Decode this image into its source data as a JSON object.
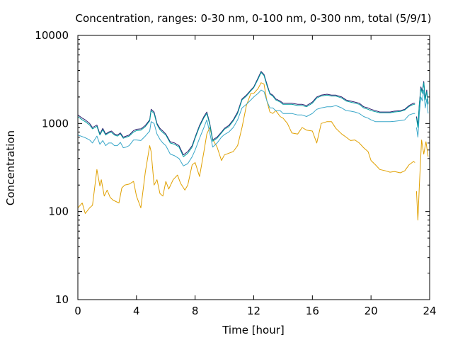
{
  "chart_data": {
    "type": "line",
    "title": "Concentration, ranges: 0-30 nm, 0-100 nm, 0-300 nm, total (5/9/1)",
    "xlabel": "Time [hour]",
    "ylabel": "Concentration",
    "xlim": [
      0,
      24
    ],
    "ylim": [
      10,
      10000
    ],
    "yscale": "log",
    "grid": false,
    "legend": "none",
    "xticks": [
      {
        "value": 0,
        "label": "0"
      },
      {
        "value": 4,
        "label": "4"
      },
      {
        "value": 8,
        "label": "8"
      },
      {
        "value": 12,
        "label": "12"
      },
      {
        "value": 16,
        "label": "16"
      },
      {
        "value": 20,
        "label": "20"
      },
      {
        "value": 24,
        "label": "24"
      }
    ],
    "yticks": [
      {
        "value": 10,
        "label": "10"
      },
      {
        "value": 100,
        "label": "100"
      },
      {
        "value": 1000,
        "label": "1000"
      },
      {
        "value": 10000,
        "label": "10000"
      }
    ],
    "series": [
      {
        "color": "#e0a000",
        "segments": [
          {
            "x": [
              0,
              0.3,
              0.5,
              0.8,
              1.0,
              1.3,
              1.5,
              1.6,
              1.8,
              2.0,
              2.2,
              2.4,
              2.6,
              2.8,
              3.0,
              3.2,
              3.5,
              3.8,
              4.0,
              4.3,
              4.6,
              4.9,
              5.0,
              5.2,
              5.4,
              5.6,
              5.8,
              6.0,
              6.2,
              6.5,
              6.8,
              7.0,
              7.3,
              7.5,
              7.8,
              8.0,
              8.3,
              8.6,
              8.8,
              9.0,
              9.2,
              9.5,
              9.8,
              10.0,
              10.3,
              10.6,
              10.9,
              11.2,
              11.5,
              11.8,
              12.0,
              12.3,
              12.5,
              12.7,
              12.9,
              13.1,
              13.3,
              13.5,
              13.8,
              14.0,
              14.3,
              14.6,
              15.0,
              15.3,
              15.6,
              16.0,
              16.3,
              16.6,
              17.0,
              17.3,
              17.6,
              18.0,
              18.3,
              18.6,
              18.9,
              19.2,
              19.5,
              19.8,
              20.0,
              20.3,
              20.6,
              21.0,
              21.3,
              21.6,
              22.0,
              22.3,
              22.6,
              22.9,
              23.0
            ],
            "y": [
              110,
              125,
              95,
              110,
              118,
              300,
              195,
              230,
              150,
              175,
              145,
              135,
              130,
              125,
              185,
              200,
              205,
              220,
              150,
              110,
              280,
              560,
              480,
              200,
              230,
              160,
              150,
              220,
              180,
              230,
              260,
              210,
              175,
              200,
              340,
              360,
              250,
              480,
              760,
              900,
              660,
              540,
              380,
              440,
              460,
              480,
              560,
              900,
              1600,
              2200,
              2200,
              2500,
              2900,
              2800,
              1800,
              1350,
              1300,
              1400,
              1200,
              1150,
              1000,
              780,
              760,
              900,
              840,
              820,
              600,
              1000,
              1050,
              1050,
              880,
              760,
              700,
              640,
              650,
              600,
              530,
              480,
              380,
              340,
              300,
              290,
              280,
              285,
              275,
              290,
              340,
              370,
              360
            ]
          },
          {
            "x": [
              23.1,
              23.2,
              23.3,
              23.45,
              23.6,
              23.75,
              23.9
            ],
            "y": [
              170,
              80,
              200,
              650,
              450,
              620,
              420
            ]
          }
        ]
      },
      {
        "color": "#3aa7c9",
        "segments": [
          {
            "x": [
              0,
              0.3,
              0.5,
              0.8,
              1.0,
              1.3,
              1.5,
              1.7,
              1.9,
              2.1,
              2.3,
              2.5,
              2.7,
              2.9,
              3.1,
              3.3,
              3.5,
              3.8,
              4.0,
              4.3,
              4.6,
              4.9,
              5.0,
              5.2,
              5.4,
              5.6,
              5.8,
              6.0,
              6.3,
              6.6,
              6.9,
              7.2,
              7.5,
              7.8,
              8.0,
              8.3,
              8.6,
              8.8,
              9.0,
              9.2,
              9.5,
              9.8,
              10.0,
              10.3,
              10.6,
              10.9,
              11.2,
              11.5,
              11.8,
              12.0,
              12.3,
              12.5,
              12.7,
              12.9,
              13.1,
              13.3,
              13.5,
              13.8,
              14.0,
              14.3,
              14.6,
              15.0,
              15.3,
              15.6,
              16.0,
              16.3,
              16.6,
              17.0,
              17.3,
              17.6,
              18.0,
              18.3,
              18.6,
              18.9,
              19.2,
              19.5,
              19.8,
              20.0,
              20.3,
              20.6,
              21.0,
              21.3,
              21.6,
              22.0,
              22.3,
              22.6,
              22.9,
              23.0
            ],
            "y": [
              740,
              710,
              690,
              650,
              600,
              720,
              580,
              640,
              560,
              600,
              600,
              560,
              560,
              610,
              530,
              540,
              560,
              650,
              650,
              640,
              720,
              820,
              1050,
              1000,
              760,
              660,
              600,
              560,
              450,
              430,
              400,
              330,
              350,
              420,
              500,
              680,
              900,
              1100,
              780,
              540,
              600,
              700,
              750,
              800,
              900,
              1100,
              1500,
              1650,
              1850,
              2000,
              2200,
              2400,
              2300,
              1800,
              1500,
              1500,
              1400,
              1400,
              1300,
              1300,
              1300,
              1250,
              1250,
              1200,
              1300,
              1450,
              1500,
              1550,
              1550,
              1600,
              1500,
              1400,
              1380,
              1350,
              1300,
              1200,
              1150,
              1100,
              1050,
              1050,
              1050,
              1050,
              1060,
              1080,
              1100,
              1250,
              1300,
              1300
            ]
          },
          {
            "x": [
              23.1,
              23.2,
              23.3,
              23.4,
              23.5,
              23.6,
              23.7,
              23.8,
              23.9
            ],
            "y": [
              900,
              700,
              1300,
              2000,
              1800,
              2400,
              1500,
              1900,
              1300
            ]
          }
        ]
      },
      {
        "color": "#2e1e6e",
        "segments": [
          {
            "x": [
              0,
              0.3,
              0.5,
              0.8,
              1.0,
              1.3,
              1.5,
              1.7,
              1.9,
              2.1,
              2.3,
              2.5,
              2.7,
              2.9,
              3.1,
              3.3,
              3.5,
              3.8,
              4.0,
              4.3,
              4.6,
              4.9,
              5.0,
              5.2,
              5.4,
              5.6,
              5.8,
              6.0,
              6.3,
              6.6,
              6.9,
              7.2,
              7.5,
              7.8,
              8.0,
              8.3,
              8.6,
              8.8,
              9.0,
              9.2,
              9.5,
              9.8,
              10.0,
              10.3,
              10.6,
              10.9,
              11.2,
              11.5,
              11.8,
              12.0,
              12.3,
              12.5,
              12.7,
              12.9,
              13.1,
              13.3,
              13.5,
              13.8,
              14.0,
              14.3,
              14.6,
              15.0,
              15.3,
              15.6,
              16.0,
              16.3,
              16.6,
              17.0,
              17.3,
              17.6,
              18.0,
              18.3,
              18.6,
              18.9,
              19.2,
              19.5,
              19.8,
              20.0,
              20.3,
              20.6,
              21.0,
              21.3,
              21.6,
              22.0,
              22.3,
              22.6,
              22.9,
              23.0
            ],
            "y": [
              1250,
              1150,
              1100,
              1000,
              900,
              960,
              760,
              880,
              760,
              800,
              820,
              760,
              740,
              780,
              700,
              720,
              740,
              830,
              860,
              870,
              950,
              1100,
              1450,
              1350,
              1000,
              880,
              820,
              760,
              620,
              600,
              560,
              440,
              480,
              560,
              700,
              950,
              1200,
              1350,
              1000,
              650,
              700,
              800,
              880,
              950,
              1100,
              1350,
              1900,
              2100,
              2400,
              2600,
              3300,
              3900,
              3600,
              2800,
              2200,
              2100,
              1900,
              1800,
              1700,
              1700,
              1700,
              1650,
              1650,
              1600,
              1750,
              2000,
              2100,
              2150,
              2100,
              2100,
              2000,
              1850,
              1800,
              1750,
              1700,
              1550,
              1500,
              1450,
              1400,
              1350,
              1350,
              1350,
              1380,
              1400,
              1450,
              1600,
              1700,
              1700
            ]
          },
          {
            "x": [
              23.1,
              23.2,
              23.3,
              23.4,
              23.5,
              23.6,
              23.7,
              23.8,
              23.9
            ],
            "y": [
              1200,
              950,
              1700,
              2600,
              2300,
              3000,
              1900,
              2400,
              1700
            ]
          }
        ]
      },
      {
        "color": "#00a0a0",
        "segments": [
          {
            "x": [
              0,
              0.3,
              0.5,
              0.8,
              1.0,
              1.3,
              1.5,
              1.7,
              1.9,
              2.1,
              2.3,
              2.5,
              2.7,
              2.9,
              3.1,
              3.3,
              3.5,
              3.8,
              4.0,
              4.3,
              4.6,
              4.9,
              5.0,
              5.2,
              5.4,
              5.6,
              5.8,
              6.0,
              6.3,
              6.6,
              6.9,
              7.2,
              7.5,
              7.8,
              8.0,
              8.3,
              8.6,
              8.8,
              9.0,
              9.2,
              9.5,
              9.8,
              10.0,
              10.3,
              10.6,
              10.9,
              11.2,
              11.5,
              11.8,
              12.0,
              12.3,
              12.5,
              12.7,
              12.9,
              13.1,
              13.3,
              13.5,
              13.8,
              14.0,
              14.3,
              14.6,
              15.0,
              15.3,
              15.6,
              16.0,
              16.3,
              16.6,
              17.0,
              17.3,
              17.6,
              18.0,
              18.3,
              18.6,
              18.9,
              19.2,
              19.5,
              19.8,
              20.0,
              20.3,
              20.6,
              21.0,
              21.3,
              21.6,
              22.0,
              22.3,
              22.6,
              22.9,
              23.0
            ],
            "y": [
              1200,
              1100,
              1050,
              960,
              870,
              930,
              740,
              850,
              740,
              780,
              790,
              740,
              720,
              760,
              680,
              700,
              720,
              800,
              830,
              840,
              920,
              1070,
              1400,
              1300,
              970,
              850,
              790,
              740,
              600,
              580,
              540,
              420,
              460,
              540,
              680,
              920,
              1160,
              1300,
              970,
              630,
              680,
              780,
              860,
              920,
              1070,
              1300,
              1850,
              2050,
              2350,
              2550,
              3200,
              3800,
              3500,
              2700,
              2150,
              2050,
              1850,
              1750,
              1650,
              1650,
              1650,
              1600,
              1600,
              1550,
              1700,
              1950,
              2050,
              2100,
              2050,
              2050,
              1950,
              1800,
              1750,
              1700,
              1650,
              1500,
              1450,
              1400,
              1360,
              1320,
              1320,
              1320,
              1350,
              1370,
              1420,
              1560,
              1650,
              1650
            ]
          },
          {
            "x": [
              23.1,
              23.2,
              23.3,
              23.4,
              23.5,
              23.6,
              23.7,
              23.8,
              23.9
            ],
            "y": [
              1150,
              900,
              1650,
              2500,
              2200,
              2900,
              1850,
              2300,
              1650
            ]
          }
        ]
      }
    ]
  }
}
